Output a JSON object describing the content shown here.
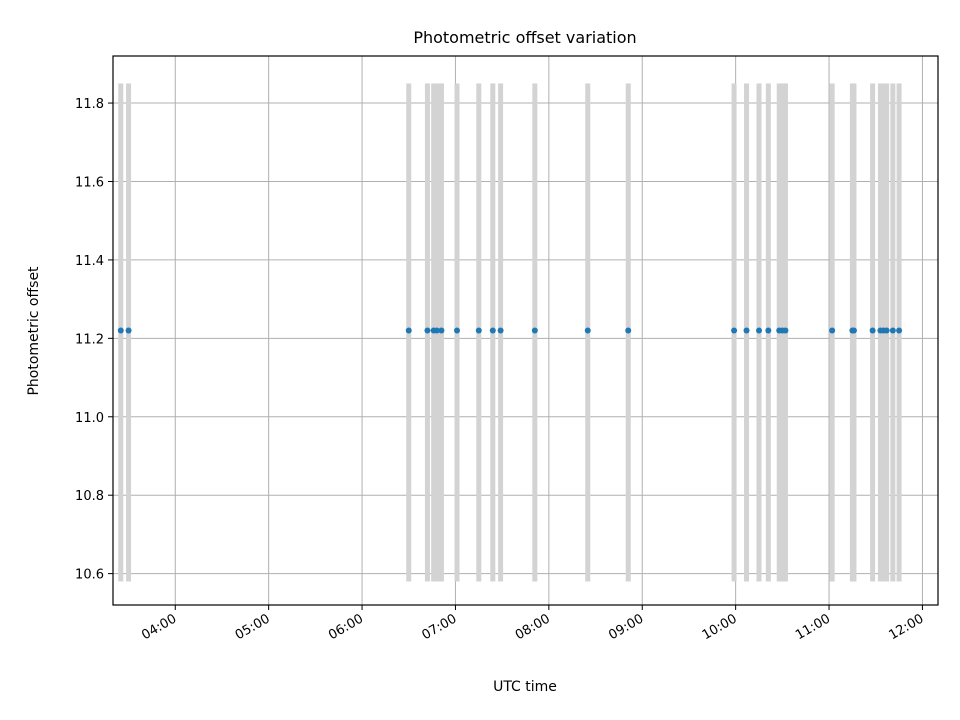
{
  "chart_data": {
    "type": "scatter",
    "title": "Photometric offset variation",
    "xlabel": "UTC time",
    "ylabel": "Photometric offset",
    "x_axis": "time",
    "xlim": [
      "03:20",
      "12:10"
    ],
    "ylim": [
      10.52,
      11.92
    ],
    "yticks": [
      10.6,
      10.8,
      11.0,
      11.2,
      11.4,
      11.6,
      11.8
    ],
    "ytick_labels": [
      "10.6",
      "10.8",
      "11.0",
      "11.2",
      "11.4",
      "11.6",
      "11.8"
    ],
    "xticks": [
      "04:00",
      "05:00",
      "06:00",
      "07:00",
      "08:00",
      "09:00",
      "10:00",
      "11:00",
      "12:00"
    ],
    "grid": true,
    "colors": {
      "points": "#1f77b4",
      "vertical_bars": "#d3d3d3",
      "grid": "#b0b0b0"
    },
    "vertical_bar_range": [
      10.58,
      11.85
    ],
    "series": [
      {
        "x": [
          "03:25",
          "03:30",
          "06:30",
          "06:42",
          "06:46",
          "06:48",
          "06:51",
          "07:01",
          "07:15",
          "07:24",
          "07:29",
          "07:51",
          "08:25",
          "08:51",
          "09:59",
          "10:07",
          "10:15",
          "10:21",
          "10:28",
          "10:30",
          "10:32",
          "11:02",
          "11:15",
          "11:16",
          "11:28",
          "11:33",
          "11:35",
          "11:37",
          "11:41",
          "11:45"
        ],
        "y": [
          11.22,
          11.22,
          11.22,
          11.22,
          11.22,
          11.22,
          11.22,
          11.22,
          11.22,
          11.22,
          11.22,
          11.22,
          11.22,
          11.22,
          11.22,
          11.22,
          11.22,
          11.22,
          11.22,
          11.22,
          11.22,
          11.22,
          11.22,
          11.22,
          11.22,
          11.22,
          11.22,
          11.22,
          11.22,
          11.22
        ]
      }
    ]
  }
}
